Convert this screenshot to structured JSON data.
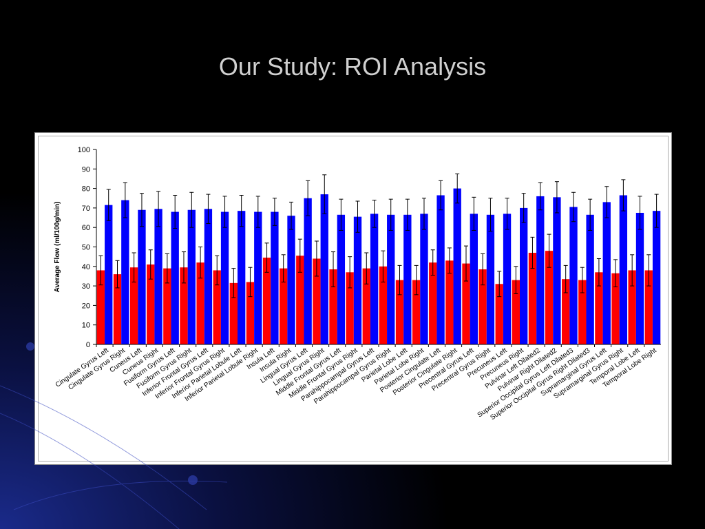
{
  "slide": {
    "title": "Our Study: ROI Analysis"
  },
  "colors": {
    "series_red": "#ff0000",
    "series_blue": "#0000ff",
    "background": "#000000"
  },
  "chart_data": {
    "type": "bar",
    "title": "",
    "xlabel": "",
    "ylabel": "Average Flow (ml/100g/min)",
    "ylim": [
      0,
      100
    ],
    "yticks": [
      0,
      10,
      20,
      30,
      40,
      50,
      60,
      70,
      80,
      90,
      100
    ],
    "grid": false,
    "legend": "none",
    "categories": [
      "Cingulate Gyrus Left",
      "Cingulate Gyrus Right",
      "Cuneus Left",
      "Cuneus Right",
      "Fusiform Gyrus Left",
      "Fusiform Gyrus Right",
      "Inferior Frontal Gyrus Left",
      "Inferior Frontal Gyrus Right",
      "Inferior Parietal Lobule Left",
      "Inferior Parietal Lobule Right",
      "Insula Left",
      "Insula Right",
      "Lingual Gyrus Left",
      "Lingual Gyrus Right",
      "Middle Frontal Gyrus Left",
      "Middle Frontal Gyrus Right",
      "Parahippocampal Gyrus Left",
      "Parahippocampal Gyrus Right",
      "Parietal Lobe Left",
      "Parietal Lobe Right",
      "Posterior Cingulate Left",
      "Posterior Cingulate Right",
      "Precentral Gyrus Left",
      "Precentral Gyrus Right",
      "Precuneus Left",
      "Precuneus Right",
      "Pulvinar Left Dilated2",
      "Pulvinar Right Dilated2",
      "Superior Occipital Gyrus Left Dilated3",
      "Superior Occipital Gyrus Right Dilated3",
      "Supramarginal Gyrus Left",
      "Supramarginal Gyrus Right",
      "Temporal Lobe Left",
      "Temporal Lobe Right"
    ],
    "series": [
      {
        "values": [
          38,
          36,
          39.5,
          41,
          39,
          39.5,
          42,
          38,
          31.5,
          32,
          44.5,
          39,
          45.5,
          44,
          38.5,
          37,
          39,
          40,
          33,
          33,
          42,
          43,
          41.5,
          38.5,
          31,
          33,
          47,
          48,
          33.5,
          33,
          37,
          36.5,
          38,
          38
        ],
        "errors": [
          7.5,
          7,
          7.5,
          7.5,
          7.5,
          8,
          8,
          7.5,
          7.5,
          7.5,
          7.5,
          7,
          8.5,
          9,
          9,
          8,
          8,
          8,
          7.5,
          7.5,
          6.5,
          6.5,
          9,
          8,
          6.5,
          7,
          8,
          8.5,
          7,
          6.5,
          7,
          7,
          8,
          8
        ]
      },
      {
        "values": [
          71.5,
          74,
          69,
          69.5,
          68,
          69,
          69.5,
          68,
          68.5,
          68,
          68,
          66,
          75,
          77,
          66.5,
          65.5,
          67,
          66.5,
          66.5,
          67,
          76.5,
          80,
          67,
          66.5,
          67,
          70,
          76,
          75.5,
          70.5,
          66.5,
          73,
          76.5,
          67.5,
          68.5
        ],
        "errors": [
          8,
          9,
          8.5,
          9,
          8.5,
          9,
          7.5,
          8,
          8,
          8,
          7,
          7,
          9,
          10,
          8,
          8,
          7,
          8,
          8,
          8,
          7.5,
          7.5,
          8.5,
          8.5,
          8,
          7.5,
          7,
          8,
          7.5,
          8,
          8,
          8,
          8.5,
          8.5
        ]
      }
    ]
  }
}
